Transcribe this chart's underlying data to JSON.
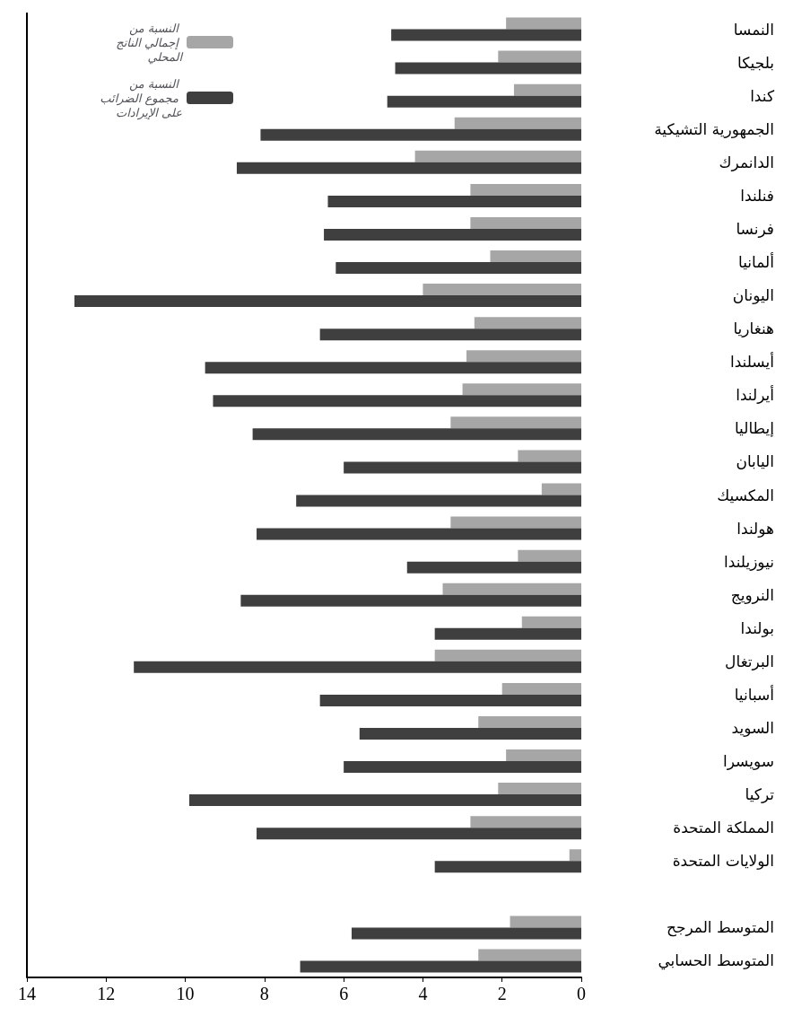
{
  "chart_data": {
    "type": "bar",
    "orientation": "horizontal",
    "categories": [
      "النمسا",
      "بلجيكا",
      "كندا",
      "الجمهورية التشيكية",
      "الدانمرك",
      "فنلندا",
      "فرنسا",
      "ألمانيا",
      "اليونان",
      "هنغاريا",
      "أيسلندا",
      "أيرلندا",
      "إيطاليا",
      "اليابان",
      "المكسيك",
      "هولندا",
      "نيوزيلندا",
      "النرويج",
      "بولندا",
      "البرتغال",
      "أسبانيا",
      "السويد",
      "سويسرا",
      "تركيا",
      "المملكة المتحدة",
      "الولايات المتحدة",
      null,
      "المتوسط المرجح",
      "المتوسط الحسابي"
    ],
    "series": [
      {
        "name": "النسبة من إجمالي الناتج المحلي",
        "color": "#a6a6a6",
        "values": [
          1.9,
          2.1,
          1.7,
          3.2,
          4.2,
          2.8,
          2.8,
          2.3,
          4.0,
          2.7,
          2.9,
          3.0,
          3.3,
          1.6,
          1.0,
          3.3,
          1.6,
          3.5,
          1.5,
          3.7,
          2.0,
          2.6,
          1.9,
          2.1,
          2.8,
          0.3,
          null,
          1.8,
          2.6
        ]
      },
      {
        "name": "النسبة من مجموع الضرائب على الإيرادات",
        "color": "#3f3f3f",
        "values": [
          4.8,
          4.7,
          4.9,
          8.1,
          8.7,
          6.4,
          6.5,
          6.2,
          12.8,
          6.6,
          9.5,
          9.3,
          8.3,
          6.0,
          7.2,
          8.2,
          4.4,
          8.6,
          3.7,
          11.3,
          6.6,
          5.6,
          6.0,
          9.9,
          8.2,
          3.7,
          null,
          5.8,
          7.1
        ]
      }
    ],
    "xlim": [
      14,
      0
    ],
    "xticks": [
      0,
      2,
      4,
      6,
      8,
      10,
      12,
      14
    ],
    "grid": false,
    "legend": "top left"
  }
}
